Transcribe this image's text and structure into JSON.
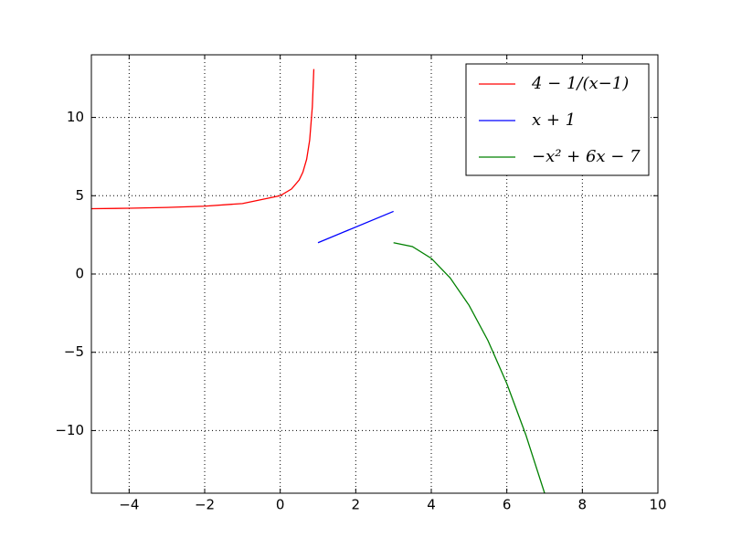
{
  "chart_data": {
    "type": "line",
    "xlim": [
      -5,
      10
    ],
    "ylim": [
      -14,
      14
    ],
    "xticks": [
      {
        "value": -4,
        "label": "−4"
      },
      {
        "value": -2,
        "label": "−2"
      },
      0,
      2,
      4,
      6,
      8,
      10
    ],
    "yticks": [
      {
        "value": -10,
        "label": "−10"
      },
      {
        "value": -5,
        "label": "−5"
      },
      0,
      5,
      10
    ],
    "grid": true,
    "legend": "upper right",
    "series": [
      {
        "name": "4 − 1/(x−1)",
        "color": "#ff0000",
        "x": [
          -5,
          -4,
          -3,
          -2,
          -1,
          0,
          0.3,
          0.5,
          0.6,
          0.7,
          0.78,
          0.85,
          0.89
        ],
        "values": [
          4.17,
          4.2,
          4.25,
          4.33,
          4.5,
          5,
          5.43,
          6,
          6.5,
          7.33,
          8.55,
          10.67,
          13.09
        ]
      },
      {
        "name": "x + 1",
        "color": "#0000ff",
        "x": [
          1,
          3
        ],
        "values": [
          2,
          4
        ]
      },
      {
        "name": "−x² + 6x − 7",
        "color": "#008000",
        "x": [
          3,
          3.5,
          4,
          4.5,
          5,
          5.5,
          6,
          6.5,
          7
        ],
        "values": [
          2,
          1.75,
          1,
          -0.25,
          -2,
          -4.25,
          -7,
          -10.25,
          -14
        ]
      }
    ]
  }
}
